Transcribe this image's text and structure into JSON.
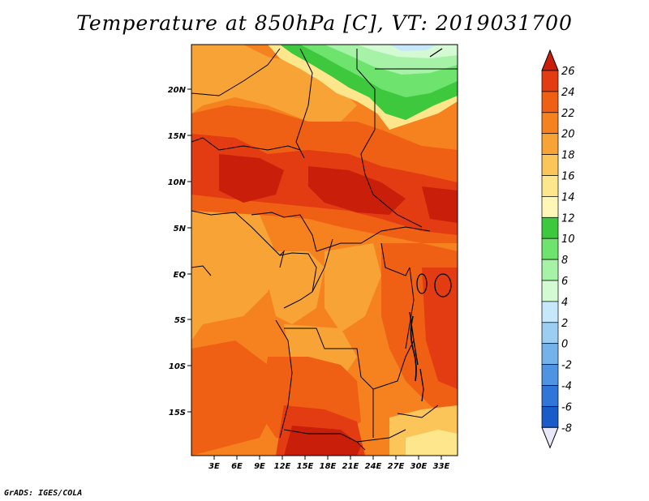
{
  "title": "Temperature at 850hPa [C], VT: 2019031700",
  "credit": "GrADS: IGES/COLA",
  "map": {
    "lat_labels": [
      "20N",
      "15N",
      "10N",
      "5N",
      "EQ",
      "5S",
      "10S",
      "15S"
    ],
    "lon_labels": [
      "3E",
      "6E",
      "9E",
      "12E",
      "15E",
      "18E",
      "21E",
      "24E",
      "27E",
      "30E",
      "33E"
    ]
  },
  "colorbar": {
    "labels": [
      "26",
      "24",
      "22",
      "20",
      "18",
      "16",
      "14",
      "12",
      "10",
      "8",
      "6",
      "4",
      "2",
      "0",
      "-2",
      "-4",
      "-6",
      "-8"
    ],
    "colors": [
      "#c81e0a",
      "#e33c12",
      "#ef5f14",
      "#f5821e",
      "#f8a335",
      "#fbc55a",
      "#fde68c",
      "#fff6b8",
      "#3ec83e",
      "#6ee46e",
      "#a6f2a6",
      "#d4fad4",
      "#c6e8fa",
      "#9ccdf3",
      "#74b2eb",
      "#4f94e2",
      "#2f76d8",
      "#195bc8",
      "#0c3fae",
      "#0b1f7a",
      "#e8e8f8"
    ]
  },
  "colors": {
    "very_hot": "#c81e0a",
    "hot": "#e33c12",
    "warm": "#ef5f14",
    "orange": "#f5821e",
    "light_orange": "#f8a335",
    "gold": "#fbc55a",
    "pale": "#fde68c",
    "green": "#3ec83e",
    "light_green": "#6ee46e",
    "pale_green": "#a6f2a6",
    "cyan_pale": "#d4fad4"
  }
}
